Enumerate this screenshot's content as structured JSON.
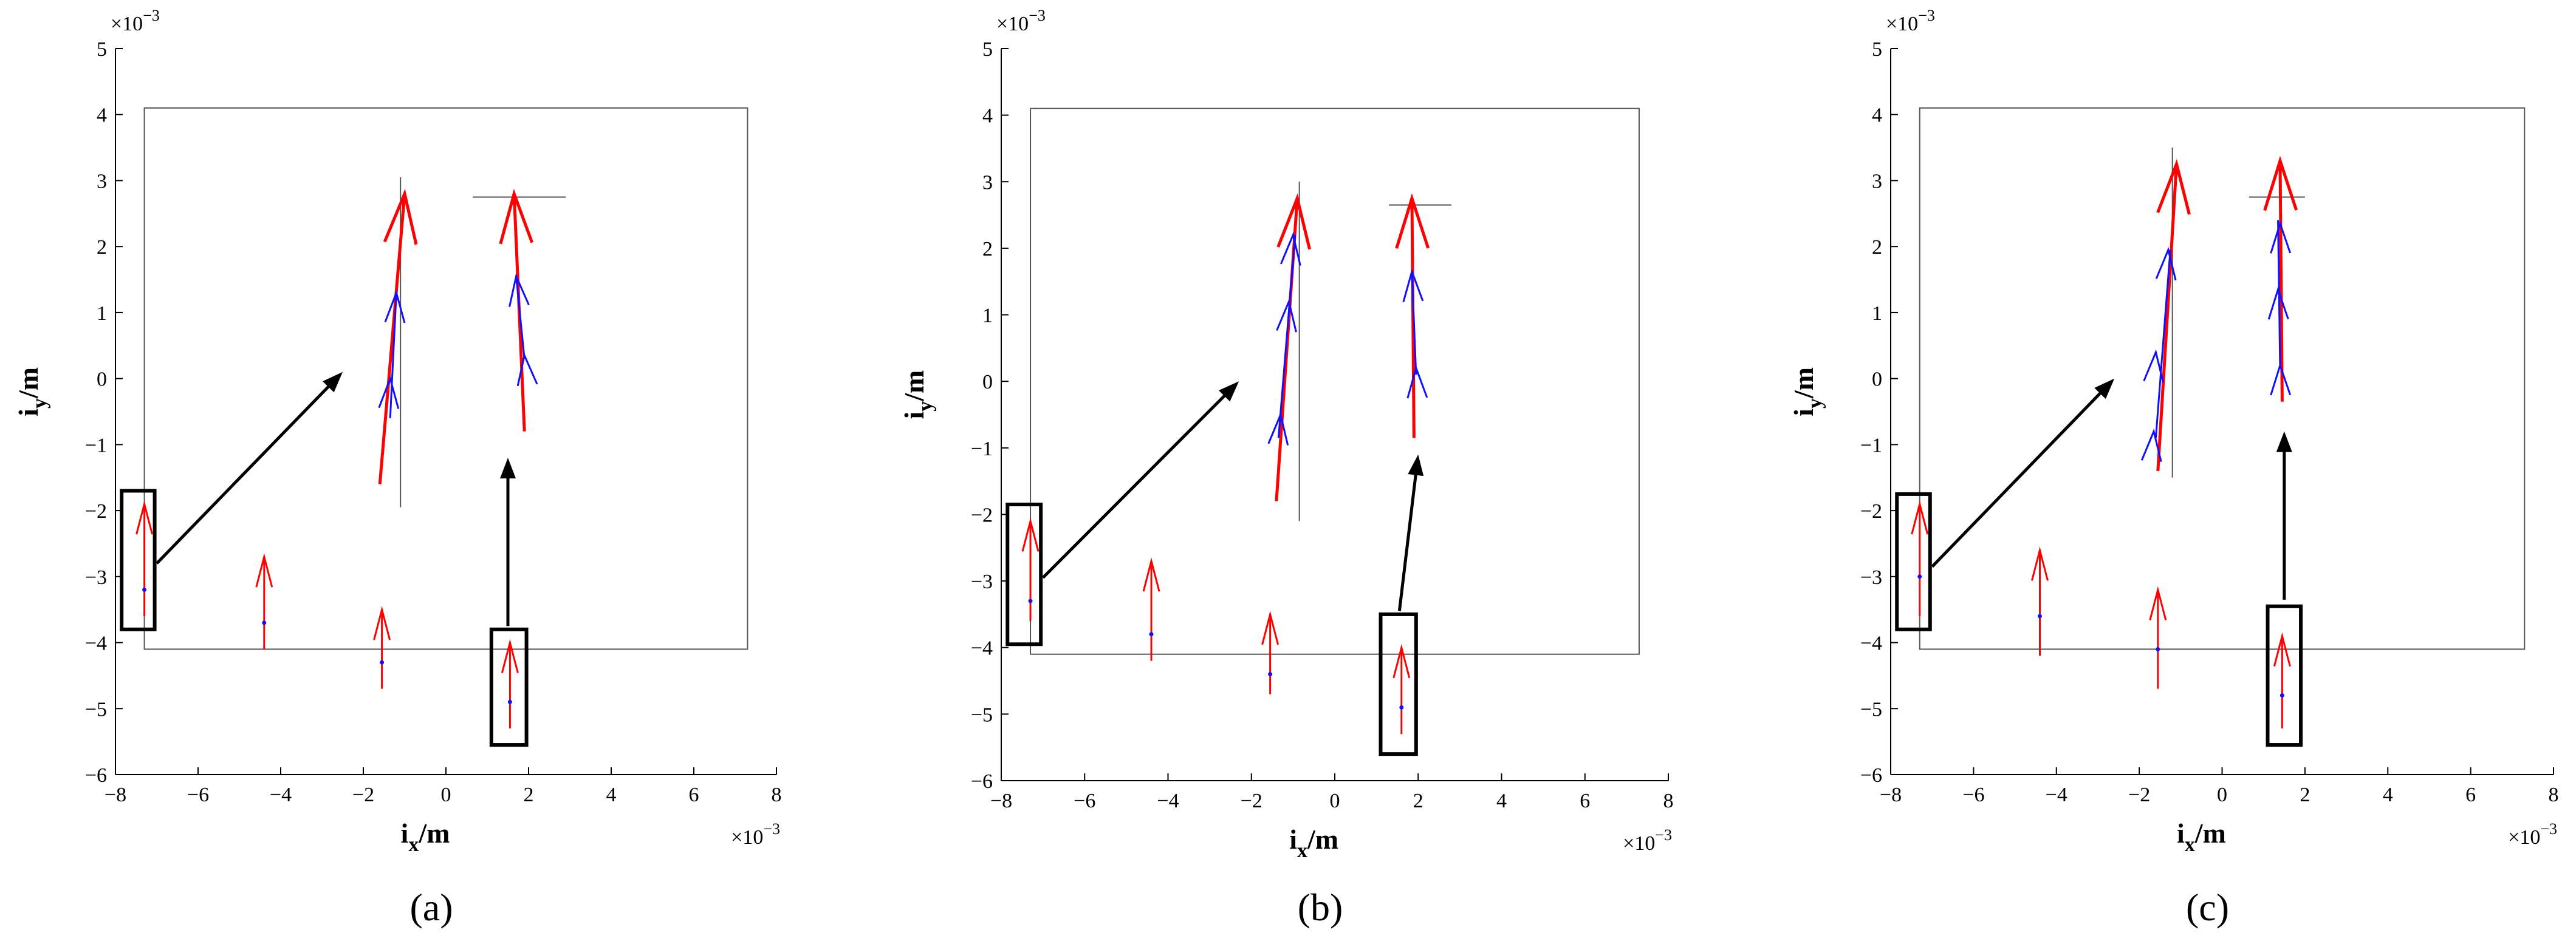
{
  "chart_data": [
    {
      "type": "vector",
      "panel_label": "(a)",
      "letter": "a",
      "xlabel": "i",
      "xlabel_sub": "x",
      "xlabel_unit": "/m",
      "ylabel": "i",
      "ylabel_sub": "y",
      "ylabel_unit": "/m",
      "x_exponent": "×10",
      "x_exponent_power": "−3",
      "y_exponent": "×10",
      "y_exponent_power": "−3",
      "xlim": [
        -8,
        8
      ],
      "ylim": [
        -6,
        5
      ],
      "x_ticks": [
        -8,
        -6,
        -4,
        -2,
        0,
        2,
        4,
        6,
        8
      ],
      "x_tick_labels": [
        "−8",
        "−6",
        "−4",
        "−2",
        "0",
        "2",
        "4",
        "6",
        "8"
      ],
      "y_ticks": [
        -6,
        -5,
        -4,
        -3,
        -2,
        -1,
        0,
        1,
        2,
        3,
        4,
        5
      ],
      "y_tick_labels": [
        "−6",
        "−5",
        "−4",
        "−3",
        "−2",
        "−1",
        "0",
        "1",
        "2",
        "3",
        "4",
        "5"
      ],
      "grid": false,
      "boundary_rect": [
        -7.3,
        -4.1,
        7.3,
        4.1
      ],
      "small_arrows": [
        {
          "x": -7.3,
          "y0": -3.6,
          "y1": -1.9,
          "blue_y": -3.2
        },
        {
          "x": -4.4,
          "y0": -4.1,
          "y1": -2.7,
          "blue_y": -3.7
        },
        {
          "x": -1.55,
          "y0": -4.7,
          "y1": -3.5,
          "blue_y": -4.3
        },
        {
          "x": 1.55,
          "y0": -5.3,
          "y1": -4.0,
          "blue_y": -4.9
        }
      ],
      "zoom_boxes": [
        {
          "x0": -7.85,
          "x1": -7.05,
          "y0": -3.8,
          "y1": -1.7
        },
        {
          "x0": 1.1,
          "x1": 1.95,
          "y0": -5.55,
          "y1": -3.8
        }
      ],
      "black_arrows": [
        {
          "from": [
            -7.0,
            -2.8
          ],
          "to": [
            -2.5,
            0.1
          ]
        },
        {
          "from": [
            1.5,
            -3.75
          ],
          "to": [
            1.5,
            -1.2
          ]
        }
      ],
      "ref_lines": [
        {
          "from": [
            -1.1,
            -1.95
          ],
          "to": [
            -1.1,
            3.05
          ]
        },
        {
          "from": [
            0.65,
            2.75
          ],
          "to": [
            2.9,
            2.75
          ]
        }
      ],
      "trajectories": [
        {
          "red": [
            [
              -1.6,
              -1.6
            ],
            [
              -1.0,
              2.8
            ]
          ],
          "blue": [
            [
              -1.35,
              -0.6
            ],
            [
              -1.2,
              1.3
            ]
          ],
          "blue_heads": [
            [
              -1.35,
              0.0
            ],
            [
              -1.2,
              1.3
            ]
          ]
        },
        {
          "red": [
            [
              1.9,
              -0.8
            ],
            [
              1.65,
              2.8
            ]
          ],
          "blue": [
            [
              1.9,
              0.3
            ],
            [
              1.7,
              1.55
            ]
          ],
          "blue_heads": [
            [
              1.9,
              0.35
            ],
            [
              1.7,
              1.55
            ]
          ]
        }
      ]
    },
    {
      "type": "vector",
      "panel_label": "(b)",
      "letter": "b",
      "xlabel": "i",
      "xlabel_sub": "x",
      "xlabel_unit": "/m",
      "ylabel": "i",
      "ylabel_sub": "y",
      "ylabel_unit": "/m",
      "x_exponent": "×10",
      "x_exponent_power": "−3",
      "y_exponent": "×10",
      "y_exponent_power": "−3",
      "xlim": [
        -8,
        8
      ],
      "ylim": [
        -6,
        5
      ],
      "x_ticks": [
        -8,
        -6,
        -4,
        -2,
        0,
        2,
        4,
        6,
        8
      ],
      "x_tick_labels": [
        "−8",
        "−6",
        "−4",
        "−2",
        "0",
        "2",
        "4",
        "6",
        "8"
      ],
      "y_ticks": [
        -6,
        -5,
        -4,
        -3,
        -2,
        -1,
        0,
        1,
        2,
        3,
        4,
        5
      ],
      "y_tick_labels": [
        "−6",
        "−5",
        "−4",
        "−3",
        "−2",
        "−1",
        "0",
        "1",
        "2",
        "3",
        "4",
        "5"
      ],
      "grid": false,
      "boundary_rect": [
        -7.3,
        -4.1,
        7.3,
        4.1
      ],
      "small_arrows": [
        {
          "x": -7.3,
          "y0": -3.6,
          "y1": -2.1,
          "blue_y": -3.3
        },
        {
          "x": -4.4,
          "y0": -4.2,
          "y1": -2.7,
          "blue_y": -3.8
        },
        {
          "x": -1.55,
          "y0": -4.7,
          "y1": -3.5,
          "blue_y": -4.4
        },
        {
          "x": 1.6,
          "y0": -5.3,
          "y1": -4.0,
          "blue_y": -4.9
        }
      ],
      "zoom_boxes": [
        {
          "x0": -7.85,
          "x1": -7.05,
          "y0": -3.95,
          "y1": -1.85
        },
        {
          "x0": 1.1,
          "x1": 1.95,
          "y0": -5.6,
          "y1": -3.5
        }
      ],
      "black_arrows": [
        {
          "from": [
            -7.0,
            -2.95
          ],
          "to": [
            -2.3,
            0.0
          ]
        },
        {
          "from": [
            1.55,
            -3.45
          ],
          "to": [
            2.0,
            -1.1
          ]
        }
      ],
      "ref_lines": [
        {
          "from": [
            -0.85,
            -2.1
          ],
          "to": [
            -0.85,
            3.0
          ]
        },
        {
          "from": [
            1.3,
            2.65
          ],
          "to": [
            2.8,
            2.65
          ]
        }
      ],
      "trajectories": [
        {
          "red": [
            [
              -1.4,
              -1.8
            ],
            [
              -0.9,
              2.75
            ]
          ],
          "blue": [
            [
              -1.35,
              -0.85
            ],
            [
              -0.95,
              2.2
            ]
          ],
          "blue_heads": [
            [
              -1.3,
              -0.5
            ],
            [
              -1.1,
              1.2
            ],
            [
              -1.0,
              2.2
            ]
          ]
        },
        {
          "red": [
            [
              1.9,
              -0.85
            ],
            [
              1.85,
              2.75
            ]
          ],
          "blue": [
            [
              1.95,
              0.1
            ],
            [
              1.85,
              1.65
            ]
          ],
          "blue_heads": [
            [
              1.95,
              0.2
            ],
            [
              1.85,
              1.65
            ]
          ]
        }
      ]
    },
    {
      "type": "vector",
      "panel_label": "(c)",
      "letter": "c",
      "xlabel": "i",
      "xlabel_sub": "x",
      "xlabel_unit": "/m",
      "ylabel": "i",
      "ylabel_sub": "y",
      "ylabel_unit": "/m",
      "x_exponent": "×10",
      "x_exponent_power": "−3",
      "y_exponent": "×10",
      "y_exponent_power": "−3",
      "xlim": [
        -8,
        8
      ],
      "ylim": [
        -6,
        5
      ],
      "x_ticks": [
        -8,
        -6,
        -4,
        -2,
        0,
        2,
        4,
        6,
        8
      ],
      "x_tick_labels": [
        "−8",
        "−6",
        "−4",
        "−2",
        "0",
        "2",
        "4",
        "6",
        "8"
      ],
      "y_ticks": [
        -6,
        -5,
        -4,
        -3,
        -2,
        -1,
        0,
        1,
        2,
        3,
        4,
        5
      ],
      "y_tick_labels": [
        "−6",
        "−5",
        "−4",
        "−3",
        "−2",
        "−1",
        "0",
        "1",
        "2",
        "3",
        "4",
        "5"
      ],
      "grid": false,
      "boundary_rect": [
        -7.3,
        -4.1,
        7.3,
        4.1
      ],
      "small_arrows": [
        {
          "x": -7.3,
          "y0": -3.6,
          "y1": -1.9,
          "blue_y": -3.0
        },
        {
          "x": -4.4,
          "y0": -4.2,
          "y1": -2.6,
          "blue_y": -3.6
        },
        {
          "x": -1.55,
          "y0": -4.7,
          "y1": -3.2,
          "blue_y": -4.1
        },
        {
          "x": 1.45,
          "y0": -5.3,
          "y1": -3.9,
          "blue_y": -4.8
        }
      ],
      "zoom_boxes": [
        {
          "x0": -7.85,
          "x1": -7.05,
          "y0": -3.8,
          "y1": -1.75
        },
        {
          "x0": 1.1,
          "x1": 1.9,
          "y0": -5.55,
          "y1": -3.45
        }
      ],
      "black_arrows": [
        {
          "from": [
            -7.0,
            -2.85
          ],
          "to": [
            -2.6,
            0.0
          ]
        },
        {
          "from": [
            1.5,
            -3.35
          ],
          "to": [
            1.5,
            -0.8
          ]
        }
      ],
      "ref_lines": [
        {
          "from": [
            -1.2,
            -1.5
          ],
          "to": [
            -1.2,
            3.5
          ]
        },
        {
          "from": [
            0.65,
            2.75
          ],
          "to": [
            2.0,
            2.75
          ]
        }
      ],
      "trajectories": [
        {
          "red": [
            [
              -1.55,
              -1.4
            ],
            [
              -1.1,
              3.25
            ]
          ],
          "blue": [
            [
              -1.6,
              -0.9
            ],
            [
              -1.25,
              1.95
            ]
          ],
          "blue_heads": [
            [
              -1.65,
              -0.8
            ],
            [
              -1.6,
              0.4
            ],
            [
              -1.3,
              1.95
            ]
          ]
        },
        {
          "red": [
            [
              1.45,
              -0.35
            ],
            [
              1.4,
              3.3
            ]
          ],
          "blue": [
            [
              1.4,
              0.15
            ],
            [
              1.35,
              2.4
            ]
          ],
          "blue_heads": [
            [
              1.4,
              0.2
            ],
            [
              1.35,
              1.35
            ],
            [
              1.4,
              2.35
            ]
          ]
        }
      ]
    }
  ],
  "colors": {
    "trajectory": "#ff0000",
    "vector": "#1010ff",
    "axes": "#000000",
    "frame": "#555555"
  }
}
